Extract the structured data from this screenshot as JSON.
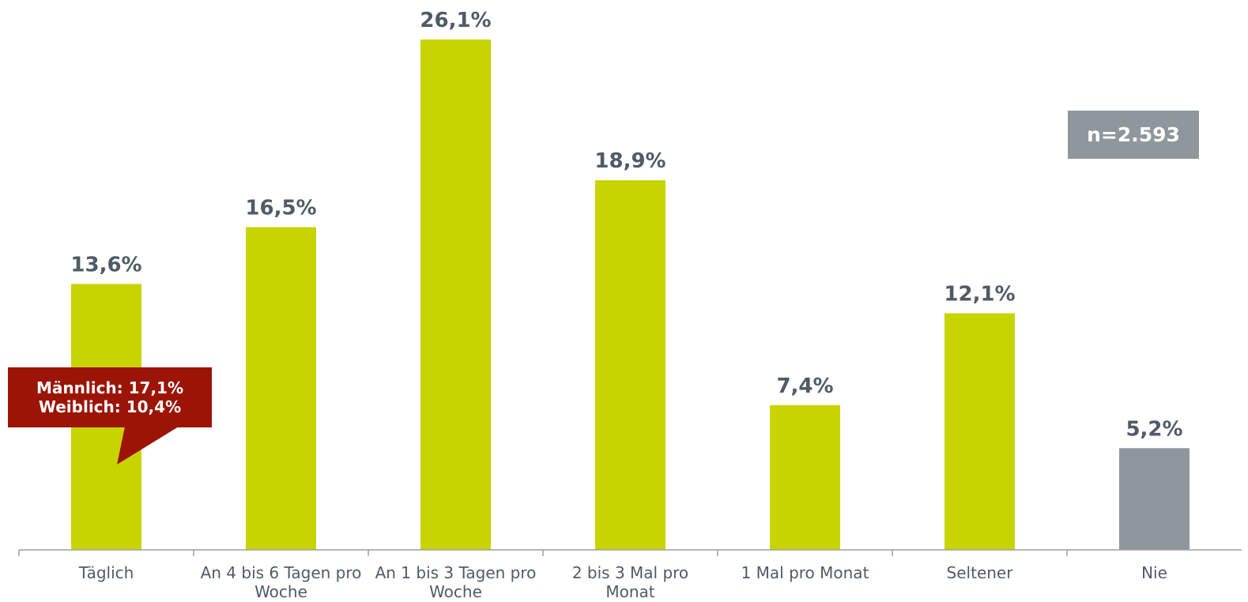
{
  "chart_data": {
    "type": "bar",
    "categories": [
      [
        "Täglich"
      ],
      [
        "An 4 bis 6 Tagen pro",
        "Woche"
      ],
      [
        "An 1 bis 3 Tagen pro",
        "Woche"
      ],
      [
        "2 bis 3 Mal pro",
        "Monat"
      ],
      [
        "1 Mal pro Monat"
      ],
      [
        "Seltener"
      ],
      [
        "Nie"
      ]
    ],
    "values": [
      13.6,
      16.5,
      26.1,
      18.9,
      7.4,
      12.1,
      5.2
    ],
    "value_labels": [
      "13,6%",
      "16,5%",
      "26,1%",
      "18,9%",
      "7,4%",
      "12,1%",
      "5,2%"
    ],
    "bar_colors": [
      "#c8d400",
      "#c8d400",
      "#c8d400",
      "#c8d400",
      "#c8d400",
      "#c8d400",
      "#8f979d"
    ],
    "ylim": [
      0,
      26.1
    ],
    "grid": false,
    "legend": false
  },
  "n_badge": "n=2.593",
  "callout": {
    "line1": "Männlich: 17,1%",
    "line2": "Weiblich: 10,4%"
  },
  "colors": {
    "accent_bar": "#c8d400",
    "highlight_bar": "#8f979d",
    "label_text": "#4f5b66",
    "callout_bg": "#9c1406",
    "axis": "#9aa0a6"
  }
}
